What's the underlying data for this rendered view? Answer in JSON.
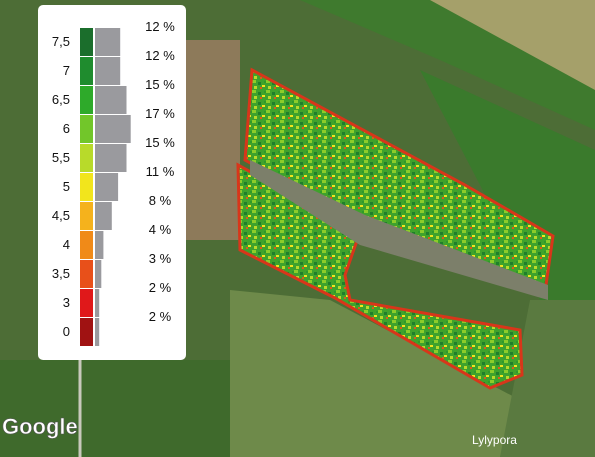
{
  "legend": {
    "items": [
      {
        "label": "7,5",
        "color": "#1b6e2c",
        "percent": 12,
        "percent_label": "12 %"
      },
      {
        "label": "7",
        "color": "#1f8c2e",
        "percent": 12,
        "percent_label": "12 %"
      },
      {
        "label": "6,5",
        "color": "#2eaa2a",
        "percent": 15,
        "percent_label": "15 %"
      },
      {
        "label": "6",
        "color": "#72c62a",
        "percent": 17,
        "percent_label": "17 %"
      },
      {
        "label": "5,5",
        "color": "#b8da2a",
        "percent": 15,
        "percent_label": "15 %"
      },
      {
        "label": "5",
        "color": "#f2e51c",
        "percent": 11,
        "percent_label": "11 %"
      },
      {
        "label": "4,5",
        "color": "#f5b21c",
        "percent": 8,
        "percent_label": "8 %"
      },
      {
        "label": "4",
        "color": "#f08a18",
        "percent": 4,
        "percent_label": "4 %"
      },
      {
        "label": "3,5",
        "color": "#e8501a",
        "percent": 3,
        "percent_label": "3 %"
      },
      {
        "label": "3",
        "color": "#e0181a",
        "percent": 2,
        "percent_label": "2 %"
      },
      {
        "label": "0",
        "color": "#a01212",
        "percent": 2,
        "percent_label": "2 %"
      }
    ]
  },
  "map": {
    "attribution": "Google",
    "place_label": "Lylypora"
  }
}
